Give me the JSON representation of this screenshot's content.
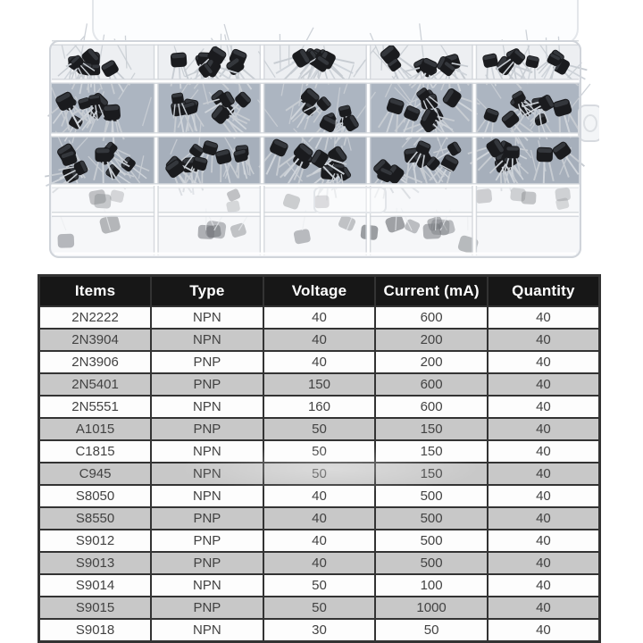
{
  "photo": {
    "alt": "Transparent plastic storage box with 15 compartments filled with black TO-92 transistors, lid open behind, latch tab on right side",
    "grid": {
      "rows": 3,
      "cols": 5
    }
  },
  "table": {
    "headers": [
      "Items",
      "Type",
      "Voltage",
      "Current (mA)",
      "Quantity"
    ],
    "rows": [
      [
        "2N2222",
        "NPN",
        "40",
        "600",
        "40"
      ],
      [
        "2N3904",
        "NPN",
        "40",
        "200",
        "40"
      ],
      [
        "2N3906",
        "PNP",
        "40",
        "200",
        "40"
      ],
      [
        "2N5401",
        "PNP",
        "150",
        "600",
        "40"
      ],
      [
        "2N5551",
        "NPN",
        "160",
        "600",
        "40"
      ],
      [
        "A1015",
        "PNP",
        "50",
        "150",
        "40"
      ],
      [
        "C1815",
        "NPN",
        "50",
        "150",
        "40"
      ],
      [
        "C945",
        "NPN",
        "50",
        "150",
        "40"
      ],
      [
        "S8050",
        "NPN",
        "40",
        "500",
        "40"
      ],
      [
        "S8550",
        "PNP",
        "40",
        "500",
        "40"
      ],
      [
        "S9012",
        "PNP",
        "40",
        "500",
        "40"
      ],
      [
        "S9013",
        "PNP",
        "40",
        "500",
        "40"
      ],
      [
        "S9014",
        "NPN",
        "50",
        "100",
        "40"
      ],
      [
        "S9015",
        "PNP",
        "50",
        "1000",
        "40"
      ],
      [
        "S9018",
        "NPN",
        "30",
        "50",
        "40"
      ]
    ],
    "colors": {
      "header_bg": "#171717",
      "header_text": "#ffffff",
      "row_bg": "#fdfdfd",
      "row_alt_bg": "#c8c8c8",
      "cell_text": "#424242",
      "border": "#333333"
    }
  }
}
